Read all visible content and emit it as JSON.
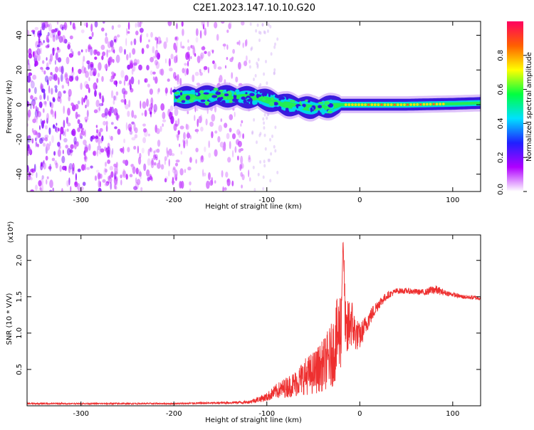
{
  "title": "C2E1.2023.147.10.10.G20",
  "chart_data": [
    {
      "type": "heatmap",
      "name": "spectrogram",
      "xlabel": "Height of straight line (km)",
      "ylabel": "Frequency (Hz)",
      "xlim": [
        -358,
        130
      ],
      "ylim": [
        -50,
        48
      ],
      "xticks": [
        -300,
        -200,
        -100,
        0,
        100
      ],
      "xtick_labels": [
        "-300",
        "-200",
        "-100",
        "0",
        "100"
      ],
      "yticks": [
        -40,
        -20,
        0,
        20,
        40
      ],
      "ytick_labels": [
        "-40",
        "-20",
        "0",
        "20",
        "40"
      ],
      "noise_region_x": [
        -358,
        -118
      ],
      "signal_band": [
        {
          "x": -200,
          "f": 4
        },
        {
          "x": -150,
          "f": 5
        },
        {
          "x": -110,
          "f": 4
        },
        {
          "x": -80,
          "f": 0
        },
        {
          "x": -50,
          "f": -2
        },
        {
          "x": -30,
          "f": -1
        },
        {
          "x": -20,
          "f": 0
        },
        {
          "x": 0,
          "f": 0
        },
        {
          "x": 50,
          "f": 0
        },
        {
          "x": 100,
          "f": 0.5
        },
        {
          "x": 130,
          "f": 1
        }
      ],
      "colorbar": {
        "label": "Normalized spectral amplitude",
        "range": [
          0,
          1
        ],
        "ticks": [
          0.0,
          0.2,
          0.4,
          0.6,
          0.8
        ],
        "tick_labels": [
          "0.0",
          "0.2",
          "0.4",
          "0.6",
          "0.8"
        ],
        "colors": [
          "#ffffff",
          "#b000ff",
          "#2020ff",
          "#00e0ff",
          "#00ff40",
          "#ffff00",
          "#ff6000",
          "#ff0060"
        ]
      }
    },
    {
      "type": "line",
      "name": "snr",
      "xlabel": "Height of straight line (km)",
      "ylabel": "SNR (10 * V/V)",
      "scale_label": "(x10⁴)",
      "xlim": [
        -358,
        130
      ],
      "ylim": [
        0,
        2.35
      ],
      "xticks": [
        -300,
        -200,
        -100,
        0,
        100
      ],
      "xtick_labels": [
        "-300",
        "-200",
        "-100",
        "0",
        "100"
      ],
      "yticks": [
        0.5,
        1.0,
        1.5,
        2.0
      ],
      "ytick_labels": [
        "0.5",
        "1.0",
        "1.5",
        "2.0"
      ],
      "line_color": "#ee3030",
      "x": [
        -358,
        -300,
        -250,
        -200,
        -150,
        -120,
        -100,
        -90,
        -80,
        -70,
        -60,
        -50,
        -40,
        -30,
        -25,
        -20,
        -18,
        -15,
        -10,
        -5,
        0,
        10,
        20,
        30,
        40,
        50,
        60,
        70,
        80,
        90,
        100,
        110,
        120,
        130
      ],
      "y": [
        0.03,
        0.03,
        0.03,
        0.03,
        0.04,
        0.05,
        0.12,
        0.2,
        0.25,
        0.3,
        0.4,
        0.45,
        0.55,
        0.7,
        0.9,
        1.1,
        2.3,
        0.9,
        1.2,
        1.0,
        0.95,
        1.2,
        1.4,
        1.52,
        1.58,
        1.58,
        1.57,
        1.56,
        1.6,
        1.56,
        1.53,
        1.5,
        1.49,
        1.48
      ],
      "spread": [
        0.01,
        0.01,
        0.01,
        0.01,
        0.015,
        0.02,
        0.06,
        0.1,
        0.14,
        0.18,
        0.25,
        0.3,
        0.35,
        0.45,
        0.55,
        0.6,
        0.2,
        0.45,
        0.4,
        0.25,
        0.18,
        0.12,
        0.08,
        0.05,
        0.04,
        0.04,
        0.04,
        0.04,
        0.07,
        0.04,
        0.03,
        0.03,
        0.03,
        0.03
      ]
    }
  ]
}
